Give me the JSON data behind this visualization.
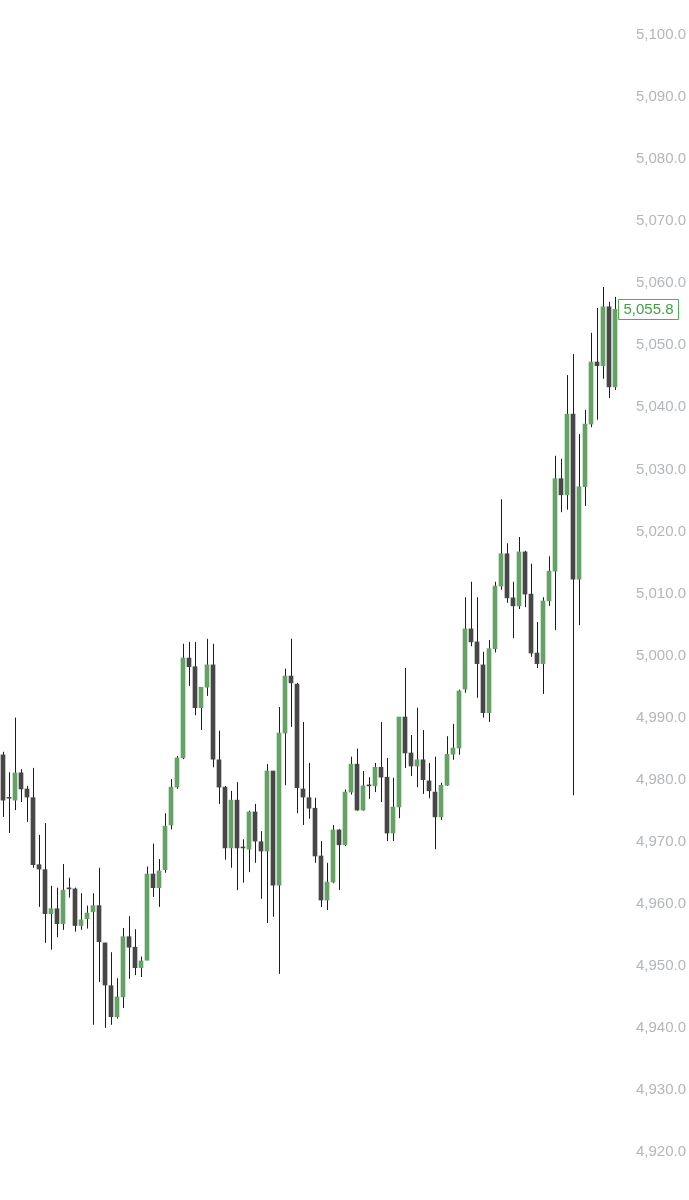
{
  "chart_data": {
    "type": "candlestick",
    "categories": [
      null,
      null,
      null,
      null,
      null,
      null,
      null,
      null,
      null,
      null,
      null,
      null,
      null,
      null,
      null,
      null,
      null,
      null,
      null,
      null,
      null,
      null,
      null,
      null,
      null,
      null,
      null,
      null,
      null,
      null,
      null,
      null,
      null,
      null,
      null,
      null,
      null,
      null,
      null,
      null,
      null,
      null,
      null,
      null,
      null,
      null,
      null,
      null,
      null,
      null,
      null,
      null,
      null,
      null,
      null,
      null,
      null,
      null,
      null,
      null,
      null,
      null,
      null,
      null,
      null,
      null,
      null,
      null,
      null,
      null,
      null,
      null,
      null,
      null,
      null,
      null,
      null,
      null,
      null,
      null,
      null,
      null,
      null,
      null,
      null,
      null,
      null,
      null,
      null,
      null,
      null,
      null,
      null,
      null,
      null,
      null,
      null,
      null,
      null,
      null,
      null,
      null,
      null
    ],
    "ohlc": [
      [
        4984.0,
        4984.5,
        4974.0,
        4976.7
      ],
      [
        4977.0,
        4981.2,
        4971.4,
        4977.0
      ],
      [
        4976.7,
        4990.0,
        4975.1,
        4981.1
      ],
      [
        4981.1,
        4981.7,
        4976.4,
        4978.5
      ],
      [
        4978.5,
        4979.0,
        4973.2,
        4977.2
      ],
      [
        4977.1,
        4981.9,
        4965.8,
        4966.3
      ],
      [
        4966.3,
        4971.1,
        4959.5,
        4965.6
      ],
      [
        4965.5,
        4973.0,
        4953.7,
        4958.4
      ],
      [
        4958.4,
        4962.9,
        4952.6,
        4959.2
      ],
      [
        4959.2,
        4962.6,
        4954.6,
        4956.8
      ],
      [
        4956.8,
        4966.4,
        4955.8,
        4962.2
      ],
      [
        4962.4,
        4964.2,
        4961.0,
        4962.4
      ],
      [
        4962.4,
        4962.6,
        4955.5,
        4956.5
      ],
      [
        4956.5,
        4961.7,
        4955.8,
        4957.4
      ],
      [
        4957.6,
        4959.7,
        4956.0,
        4958.5
      ],
      [
        4958.7,
        4961.7,
        4940.5,
        4959.7
      ],
      [
        4959.7,
        4965.8,
        4947.4,
        4953.9
      ],
      [
        4953.7,
        4953.7,
        4940.0,
        4946.9
      ],
      [
        4946.8,
        4952.2,
        4940.5,
        4941.8
      ],
      [
        4941.8,
        4948.0,
        4941.5,
        4945.0
      ],
      [
        4945.0,
        4956.1,
        4943.2,
        4954.7
      ],
      [
        4954.7,
        4958.0,
        4947.9,
        4953.0
      ],
      [
        4953.0,
        4955.9,
        4948.5,
        4949.7
      ],
      [
        4949.7,
        4951.5,
        4948.2,
        4950.8
      ],
      [
        4950.9,
        4966.0,
        4950.9,
        4964.8
      ],
      [
        4964.8,
        4969.7,
        4961.1,
        4962.6
      ],
      [
        4962.6,
        4967.2,
        4959.5,
        4965.3
      ],
      [
        4965.5,
        4974.6,
        4965.0,
        4972.5
      ],
      [
        4972.7,
        4980.1,
        4972.0,
        4978.8
      ],
      [
        4978.8,
        4983.8,
        4978.5,
        4983.5
      ],
      [
        4983.5,
        5001.9,
        4983.3,
        4999.6
      ],
      [
        4999.6,
        5002.2,
        4995.1,
        4998.2
      ],
      [
        4998.2,
        5002.2,
        4990.4,
        4991.6
      ],
      [
        4991.6,
        4994.9,
        4988.0,
        4994.9
      ],
      [
        4994.9,
        5002.7,
        4993.5,
        4998.5
      ],
      [
        4998.5,
        5001.9,
        4982.0,
        4983.3
      ],
      [
        4983.2,
        4987.9,
        4976.1,
        4978.8
      ],
      [
        4978.8,
        4979.0,
        4967.1,
        4969.0
      ],
      [
        4969.0,
        4978.2,
        4965.8,
        4976.7
      ],
      [
        4976.7,
        4979.6,
        4962.2,
        4969.0
      ],
      [
        4969.0,
        4970.4,
        4963.4,
        4969.0
      ],
      [
        4968.8,
        4975.0,
        4965.1,
        4974.8
      ],
      [
        4974.8,
        4976.1,
        4966.6,
        4970.1
      ],
      [
        4970.0,
        4971.7,
        4960.8,
        4968.5
      ],
      [
        4968.5,
        4982.5,
        4956.9,
        4981.4
      ],
      [
        4981.4,
        4981.4,
        4957.9,
        4963.0
      ],
      [
        4963.0,
        4991.7,
        4948.7,
        4987.5
      ],
      [
        4987.5,
        4997.9,
        4979.1,
        4996.7
      ],
      [
        4996.7,
        5002.7,
        4988.5,
        4995.6
      ],
      [
        4995.4,
        4995.6,
        4974.6,
        4978.7
      ],
      [
        4978.5,
        4989.3,
        4972.7,
        4977.2
      ],
      [
        4977.1,
        4982.7,
        4973.7,
        4975.4
      ],
      [
        4975.4,
        4977.1,
        4966.6,
        4967.7
      ],
      [
        4967.7,
        4970.1,
        4959.5,
        4960.6
      ],
      [
        4960.6,
        4966.6,
        4959.0,
        4963.5
      ],
      [
        4963.5,
        4972.7,
        4963.3,
        4971.9
      ],
      [
        4971.9,
        4972.0,
        4962.2,
        4969.5
      ],
      [
        4969.5,
        4978.4,
        4969.3,
        4978.0
      ],
      [
        4978.0,
        4983.7,
        4977.6,
        4982.5
      ],
      [
        4982.5,
        4985.0,
        4975.0,
        4975.1
      ],
      [
        4975.1,
        4981.4,
        4975.0,
        4979.0
      ],
      [
        4979.0,
        4980.4,
        4976.9,
        4979.0
      ],
      [
        4979.0,
        4982.7,
        4978.0,
        4982.0
      ],
      [
        4982.0,
        4989.3,
        4976.4,
        4980.4
      ],
      [
        4980.4,
        4983.5,
        4970.1,
        4971.4
      ],
      [
        4971.4,
        4980.3,
        4970.1,
        4975.6
      ],
      [
        4975.6,
        4990.1,
        4973.8,
        4990.1
      ],
      [
        4990.1,
        4998.0,
        4981.9,
        4984.3
      ],
      [
        4984.3,
        4987.2,
        4980.6,
        4982.2
      ],
      [
        4982.2,
        4991.6,
        4978.8,
        4983.2
      ],
      [
        4983.2,
        4988.0,
        4977.7,
        4980.0
      ],
      [
        4979.8,
        4982.7,
        4977.0,
        4978.2
      ],
      [
        4978.0,
        4983.7,
        4968.8,
        4974.0
      ],
      [
        4974.0,
        4979.5,
        4973.5,
        4979.1
      ],
      [
        4979.1,
        4987.0,
        4979.0,
        4984.1
      ],
      [
        4984.1,
        4989.0,
        4983.2,
        4985.1
      ],
      [
        4985.1,
        4994.5,
        4984.0,
        4994.3
      ],
      [
        4994.6,
        5009.4,
        4994.0,
        5004.3
      ],
      [
        5004.3,
        5011.9,
        5001.5,
        5002.2
      ],
      [
        5002.2,
        5009.4,
        4993.2,
        4998.7
      ],
      [
        4998.5,
        5000.6,
        4990.0,
        4990.8
      ],
      [
        4990.8,
        5002.5,
        4989.3,
        5001.1
      ],
      [
        5001.1,
        5011.9,
        5000.5,
        5011.2
      ],
      [
        5011.2,
        5025.2,
        5010.6,
        5016.4
      ],
      [
        5016.4,
        5018.1,
        5008.5,
        5009.3
      ],
      [
        5009.3,
        5011.9,
        5002.8,
        5008.0
      ],
      [
        5008.0,
        5019.1,
        5007.5,
        5016.7
      ],
      [
        5016.7,
        5016.9,
        5007.8,
        5009.9
      ],
      [
        5009.9,
        5014.8,
        4999.8,
        5000.4
      ],
      [
        5000.4,
        5005.4,
        4998.0,
        4998.7
      ],
      [
        4998.7,
        5009.4,
        4993.8,
        5008.8
      ],
      [
        5008.8,
        5016.0,
        5008.0,
        5013.6
      ],
      [
        5013.6,
        5032.2,
        5004.1,
        5028.5
      ],
      [
        5028.5,
        5031.7,
        5023.1,
        5025.9
      ],
      [
        5025.9,
        5045.2,
        5023.5,
        5038.9
      ],
      [
        5038.9,
        5048.6,
        4977.5,
        5012.3
      ],
      [
        5012.3,
        5035.7,
        5004.9,
        5027.2
      ],
      [
        5027.2,
        5039.6,
        5024.1,
        5037.3
      ],
      [
        5037.3,
        5052.0,
        5036.8,
        5047.3
      ],
      [
        5047.3,
        5056.0,
        5038.0,
        5046.7
      ],
      [
        5046.7,
        5059.4,
        5044.6,
        5056.2
      ],
      [
        5056.2,
        5057.0,
        5041.5,
        5043.3
      ],
      [
        5043.3,
        5057.8,
        5042.8,
        5055.8
      ]
    ],
    "colors": [
      "#474747",
      "#474747",
      "#64a266",
      "#474747",
      "#474747",
      "#474747",
      "#474747",
      "#474747",
      "#64a266",
      "#474747",
      "#64a266",
      "#474747",
      "#474747",
      "#64a266",
      "#64a266",
      "#64a266",
      "#474747",
      "#474747",
      "#474747",
      "#64a266",
      "#64a266",
      "#474747",
      "#474747",
      "#64a266",
      "#64a266",
      "#474747",
      "#64a266",
      "#64a266",
      "#64a266",
      "#64a266",
      "#64a266",
      "#474747",
      "#474747",
      "#64a266",
      "#64a266",
      "#474747",
      "#474747",
      "#474747",
      "#64a266",
      "#474747",
      "#474747",
      "#64a266",
      "#474747",
      "#474747",
      "#64a266",
      "#474747",
      "#64a266",
      "#64a266",
      "#474747",
      "#474747",
      "#474747",
      "#474747",
      "#474747",
      "#474747",
      "#64a266",
      "#64a266",
      "#474747",
      "#64a266",
      "#64a266",
      "#474747",
      "#64a266",
      "#474747",
      "#64a266",
      "#474747",
      "#474747",
      "#64a266",
      "#64a266",
      "#474747",
      "#474747",
      "#64a266",
      "#474747",
      "#474747",
      "#474747",
      "#64a266",
      "#64a266",
      "#64a266",
      "#64a266",
      "#64a266",
      "#474747",
      "#474747",
      "#474747",
      "#64a266",
      "#64a266",
      "#64a266",
      "#474747",
      "#474747",
      "#64a266",
      "#474747",
      "#474747",
      "#474747",
      "#64a266",
      "#64a266",
      "#64a266",
      "#474747",
      "#64a266",
      "#474747",
      "#64a266",
      "#64a266",
      "#64a266",
      "#474747",
      "#64a266",
      "#474747",
      "#64a266"
    ],
    "ylim": [
      4920,
      5100
    ],
    "yticks": [
      {
        "value": 4920,
        "label": "4,920.0"
      },
      {
        "value": 4930,
        "label": "4,930.0"
      },
      {
        "value": 4940,
        "label": "4,940.0"
      },
      {
        "value": 4950,
        "label": "4,950.0"
      },
      {
        "value": 4960,
        "label": "4,960.0"
      },
      {
        "value": 4970,
        "label": "4,970.0"
      },
      {
        "value": 4980,
        "label": "4,980.0"
      },
      {
        "value": 4990,
        "label": "4,990.0"
      },
      {
        "value": 5000,
        "label": "5,000.0"
      },
      {
        "value": 5010,
        "label": "5,010.0"
      },
      {
        "value": 5020,
        "label": "5,020.0"
      },
      {
        "value": 5030,
        "label": "5,030.0"
      },
      {
        "value": 5040,
        "label": "5,040.0"
      },
      {
        "value": 5050,
        "label": "5,050.0"
      },
      {
        "value": 5060,
        "label": "5,060.0"
      },
      {
        "value": 5070,
        "label": "5,070.0"
      },
      {
        "value": 5080,
        "label": "5,080.0"
      },
      {
        "value": 5090,
        "label": "5,090.0"
      },
      {
        "value": 5100,
        "label": "5,100.0"
      }
    ],
    "tick_labels": "y",
    "annotations": [
      "5,055.8"
    ]
  }
}
